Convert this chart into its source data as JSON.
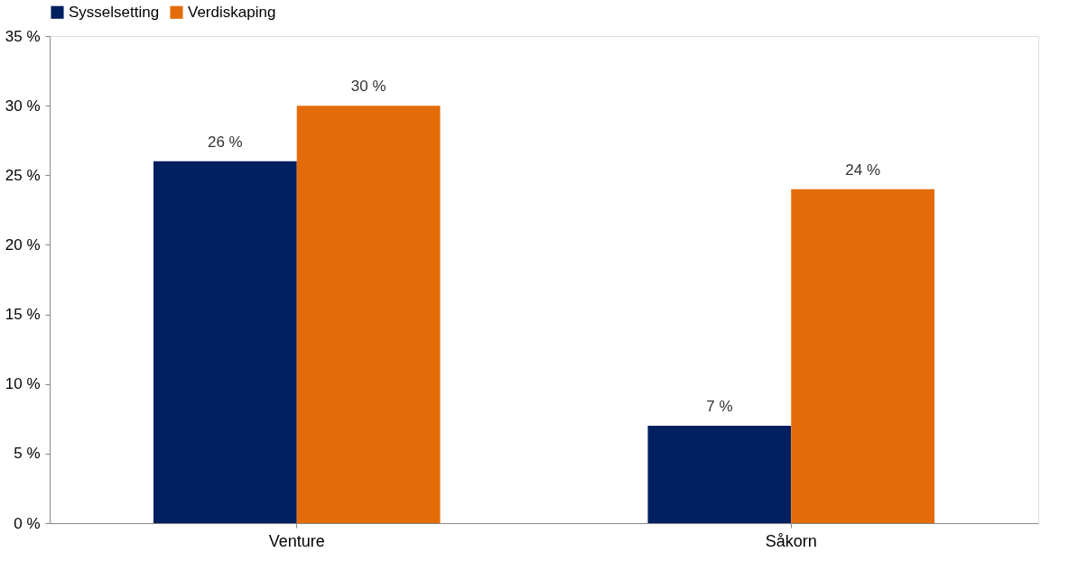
{
  "chart_data": {
    "type": "bar",
    "categories": [
      "Venture",
      "Såkorn"
    ],
    "series": [
      {
        "name": "Sysselsetting",
        "color": "#002060",
        "values": [
          26,
          7
        ],
        "value_labels": [
          "26 %",
          "7 %"
        ]
      },
      {
        "name": "Verdiskaping",
        "color": "#e36c09",
        "values": [
          30,
          24
        ],
        "value_labels": [
          "30 %",
          "24 %"
        ]
      }
    ],
    "ylim": [
      0,
      35
    ],
    "yticks": [
      {
        "value": 0,
        "label": "0 %"
      },
      {
        "value": 5,
        "label": "5 %"
      },
      {
        "value": 10,
        "label": "10 %"
      },
      {
        "value": 15,
        "label": "15 %"
      },
      {
        "value": 20,
        "label": "20 %"
      },
      {
        "value": 25,
        "label": "25 %"
      },
      {
        "value": 30,
        "label": "30 %"
      },
      {
        "value": 35,
        "label": "35 %"
      }
    ],
    "grid": false,
    "legend": "top"
  }
}
